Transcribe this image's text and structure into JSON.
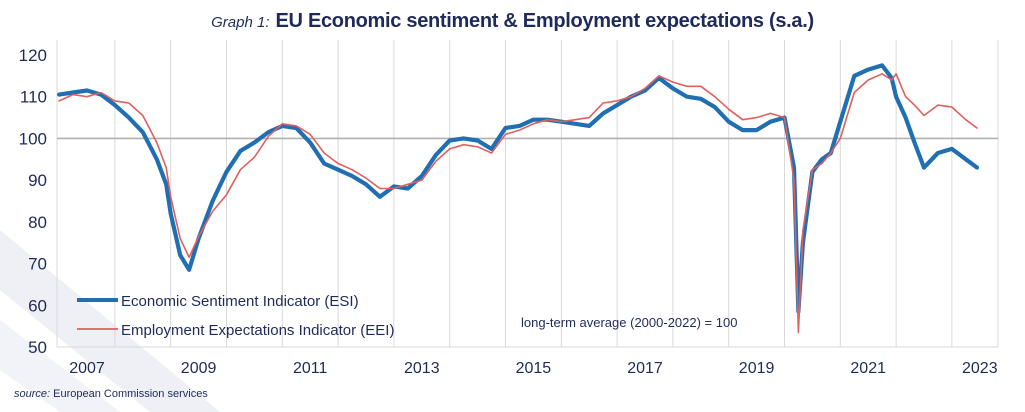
{
  "title_prefix": "Graph 1:",
  "title_main": "EU Economic sentiment & Employment expectations (s.a.)",
  "source_label": "source:",
  "source_text": "European Commission services",
  "chart_data": {
    "type": "line",
    "title": "Graph 1: EU Economic sentiment & Employment expectations (s.a.)",
    "xlabel": "",
    "ylabel": "",
    "ylim": [
      50,
      120
    ],
    "yticks": [
      50,
      60,
      70,
      80,
      90,
      100,
      110,
      120
    ],
    "xlim": [
      2007.0,
      2023.6
    ],
    "xtick_labels": [
      "2007",
      "2009",
      "2011",
      "2013",
      "2015",
      "2017",
      "2019",
      "2021",
      "2023"
    ],
    "reference_line": 100,
    "grid": "vertical",
    "annotation": "long-term average (2000-2022) = 100",
    "legend_position": "bottom-left",
    "colors": {
      "esi": "#1f6fb2",
      "eei": "#e0605e",
      "ref": "#b0b0b0",
      "grid": "#d9d9d9",
      "text": "#1f2a5a"
    },
    "series": [
      {
        "name": "Economic Sentiment Indicator (ESI)",
        "key": "esi",
        "x": [
          2007.0,
          2007.25,
          2007.5,
          2007.75,
          2008.0,
          2008.25,
          2008.5,
          2008.75,
          2008.92,
          2009.0,
          2009.17,
          2009.33,
          2009.5,
          2009.75,
          2010.0,
          2010.25,
          2010.5,
          2010.75,
          2011.0,
          2011.25,
          2011.5,
          2011.75,
          2012.0,
          2012.25,
          2012.5,
          2012.75,
          2013.0,
          2013.25,
          2013.5,
          2013.75,
          2014.0,
          2014.25,
          2014.5,
          2014.75,
          2015.0,
          2015.25,
          2015.5,
          2015.75,
          2016.0,
          2016.25,
          2016.5,
          2016.75,
          2017.0,
          2017.25,
          2017.5,
          2017.75,
          2018.0,
          2018.25,
          2018.5,
          2018.75,
          2019.0,
          2019.25,
          2019.5,
          2019.75,
          2020.0,
          2020.17,
          2020.25,
          2020.33,
          2020.5,
          2020.67,
          2020.83,
          2021.0,
          2021.25,
          2021.5,
          2021.75,
          2021.92,
          2022.0,
          2022.17,
          2022.33,
          2022.5,
          2022.75,
          2023.0,
          2023.25,
          2023.45
        ],
        "values": [
          110.5,
          111.0,
          111.5,
          110.5,
          108.0,
          105.0,
          101.5,
          95.0,
          89.0,
          82.0,
          72.0,
          68.5,
          76.0,
          85.0,
          92.0,
          97.0,
          99.0,
          101.5,
          103.0,
          102.5,
          99.0,
          94.0,
          92.5,
          91.0,
          89.0,
          86.0,
          88.5,
          88.0,
          91.0,
          96.0,
          99.5,
          100.0,
          99.5,
          97.5,
          102.5,
          103.0,
          104.5,
          104.5,
          104.0,
          103.5,
          103.0,
          106.0,
          108.0,
          110.0,
          111.5,
          114.5,
          112.0,
          110.0,
          109.5,
          107.5,
          104.0,
          102.0,
          102.0,
          104.0,
          105.0,
          93.0,
          58.5,
          75.0,
          92.0,
          95.0,
          96.5,
          104.0,
          115.0,
          116.5,
          117.5,
          114.5,
          110.0,
          105.0,
          99.0,
          93.0,
          96.5,
          97.5,
          95.0,
          93.0
        ]
      },
      {
        "name": "Employment Expectations Indicator (EEI)",
        "key": "eei",
        "x": [
          2007.0,
          2007.25,
          2007.5,
          2007.75,
          2008.0,
          2008.25,
          2008.5,
          2008.75,
          2008.92,
          2009.0,
          2009.17,
          2009.33,
          2009.5,
          2009.75,
          2010.0,
          2010.25,
          2010.5,
          2010.75,
          2011.0,
          2011.25,
          2011.5,
          2011.75,
          2012.0,
          2012.25,
          2012.5,
          2012.75,
          2013.0,
          2013.25,
          2013.5,
          2013.75,
          2014.0,
          2014.25,
          2014.5,
          2014.75,
          2015.0,
          2015.25,
          2015.5,
          2015.75,
          2016.0,
          2016.25,
          2016.5,
          2016.75,
          2017.0,
          2017.25,
          2017.5,
          2017.75,
          2018.0,
          2018.25,
          2018.5,
          2018.75,
          2019.0,
          2019.25,
          2019.5,
          2019.75,
          2020.0,
          2020.17,
          2020.25,
          2020.33,
          2020.5,
          2020.67,
          2020.83,
          2021.0,
          2021.25,
          2021.5,
          2021.75,
          2021.92,
          2022.0,
          2022.17,
          2022.33,
          2022.5,
          2022.75,
          2023.0,
          2023.25,
          2023.45
        ],
        "values": [
          109.0,
          110.5,
          110.0,
          111.0,
          109.0,
          108.5,
          105.5,
          99.0,
          93.0,
          86.0,
          76.0,
          71.5,
          76.5,
          82.5,
          86.5,
          92.5,
          95.5,
          100.5,
          103.5,
          103.0,
          101.0,
          96.5,
          94.0,
          92.5,
          90.5,
          88.0,
          88.0,
          89.0,
          90.0,
          94.5,
          97.5,
          98.5,
          98.0,
          96.5,
          101.0,
          102.0,
          103.5,
          104.5,
          104.0,
          104.5,
          105.0,
          108.5,
          109.0,
          110.0,
          112.0,
          115.0,
          113.5,
          112.5,
          112.5,
          110.0,
          107.0,
          104.5,
          105.0,
          106.0,
          105.0,
          90.0,
          53.5,
          78.0,
          92.5,
          94.0,
          96.5,
          100.0,
          111.0,
          114.0,
          115.5,
          114.0,
          115.5,
          110.0,
          108.0,
          105.5,
          108.0,
          107.5,
          104.5,
          102.5
        ]
      }
    ]
  }
}
